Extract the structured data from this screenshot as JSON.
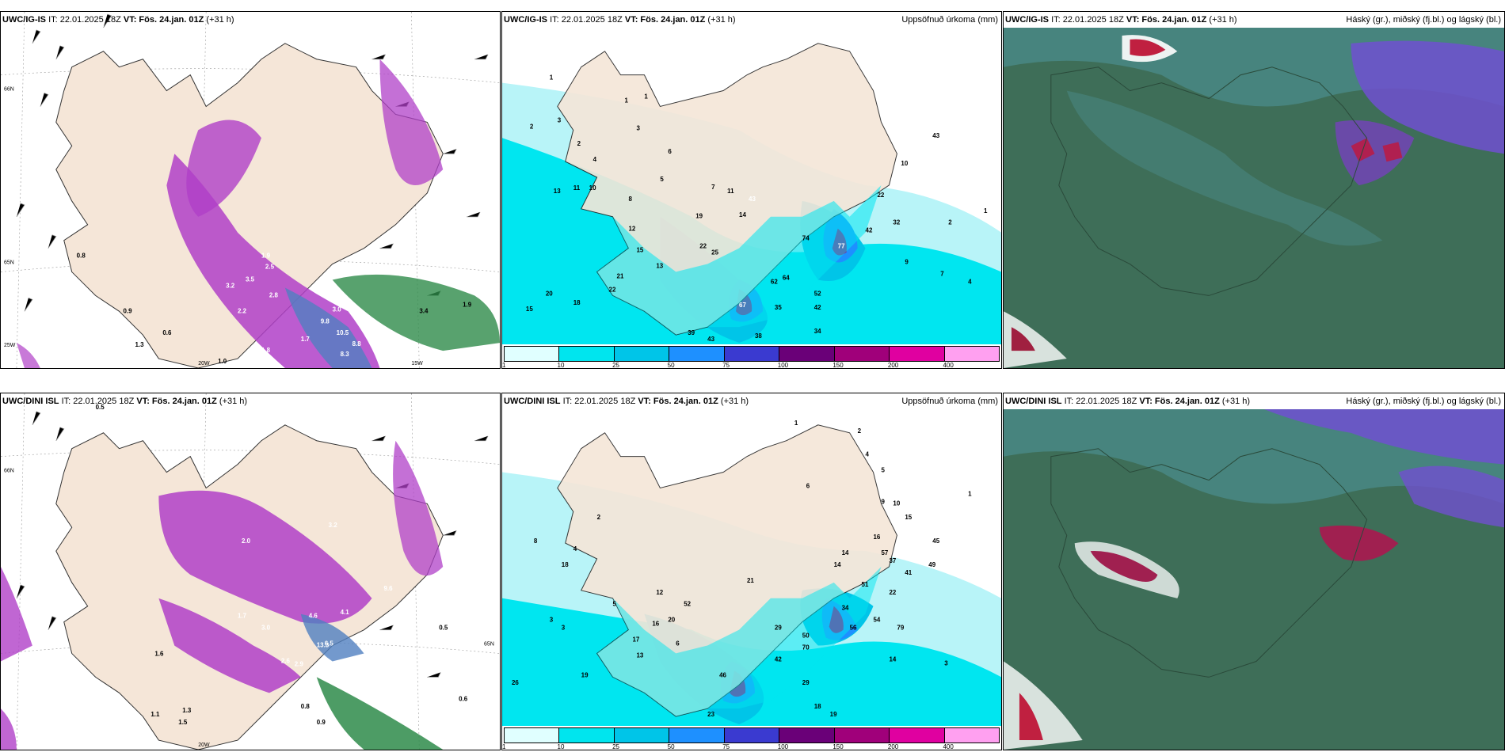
{
  "common": {
    "init": "IT: 22.01.2025 18Z",
    "valid_prefix": "VT:",
    "valid": "Fös. 24.jan. 01Z",
    "lead": "(+31 h)"
  },
  "rows": [
    {
      "model": "UWC/IG-IS",
      "panels": [
        {
          "kind": "wind-precip",
          "right_title": ""
        },
        {
          "kind": "accum-precip",
          "right_title": "Uppsöfnuð úrkoma (mm)"
        },
        {
          "kind": "cloud",
          "right_title": "Háský (gr.), miðský (fj.bl.) og lágský (bl.)"
        }
      ]
    },
    {
      "model": "UWC/DINI ISL",
      "panels": [
        {
          "kind": "wind-precip",
          "right_title": ""
        },
        {
          "kind": "accum-precip",
          "right_title": "Uppsöfnuð úrkoma (mm)"
        },
        {
          "kind": "cloud",
          "right_title": "Háský (gr.), miðský (fj.bl.) og lágský (bl.)"
        }
      ]
    }
  ],
  "grid_labels": {
    "lat_66": "66N",
    "lat_65": "65N",
    "lon_25": "25W",
    "lon_20": "20W",
    "lon_15": "15W"
  },
  "legend": {
    "ticks": [
      "1",
      "10",
      "25",
      "50",
      "75",
      "100",
      "150",
      "200",
      "400"
    ],
    "colors": [
      "#e0ffff",
      "#00e5ee",
      "#00c5e8",
      "#1e90ff",
      "#3a3ad0",
      "#6a0078",
      "#a0007a",
      "#e000a0",
      "#ffa0f0"
    ]
  },
  "colors": {
    "land": "#f5e6d8",
    "sea_precip_light": "#b8f4f8",
    "sea_precip": "#00e6f0",
    "cloud_dark": "#3e6e58",
    "cloud_mid": "#4a8a88",
    "cloud_high": "#7050d0",
    "precip_magenta": "#b040c8",
    "precip_green": "#2e8b4a"
  },
  "labels_ig_accum": [
    "1",
    "1",
    "2",
    "3",
    "2",
    "1",
    "3",
    "4",
    "6",
    "5",
    "13",
    "11",
    "10",
    "7",
    "8",
    "11",
    "43",
    "12",
    "19",
    "14",
    "22",
    "25",
    "15",
    "13",
    "21",
    "22",
    "20",
    "18",
    "15",
    "39",
    "43",
    "38",
    "34",
    "35",
    "42",
    "52",
    "62",
    "64",
    "67",
    "77",
    "74",
    "42",
    "32",
    "9",
    "7",
    "4",
    "43",
    "10",
    "22",
    "2",
    "1"
  ],
  "labels_dini_accum": [
    "1",
    "2",
    "3",
    "4",
    "5",
    "6",
    "8",
    "9",
    "10",
    "14",
    "15",
    "18",
    "19",
    "21",
    "22",
    "26",
    "29",
    "34",
    "41",
    "42",
    "45",
    "49",
    "50",
    "70",
    "79",
    "2",
    "3",
    "4",
    "5",
    "6",
    "12",
    "13",
    "16",
    "17",
    "20",
    "23",
    "46",
    "51",
    "52",
    "54",
    "57",
    "1",
    "3",
    "14",
    "14",
    "16",
    "29",
    "37",
    "56",
    "18",
    "19"
  ],
  "labels_ig_wind": [
    "0.8",
    "1.9",
    "3.4",
    "3.0",
    "9.8",
    "10.5",
    "8.8",
    "8.3",
    "1.7",
    "1.8",
    "2.2",
    "2.8",
    "3.2",
    "3.5",
    "1.9",
    "2.5",
    "0.6",
    "1.0",
    "0.9",
    "1.3"
  ],
  "labels_dini_wind": [
    "0.5",
    "0.6",
    "0.8",
    "0.9",
    "1.1",
    "1.3",
    "1.5",
    "1.6",
    "1.7",
    "2.0",
    "2.6",
    "2.9",
    "3.0",
    "3.2",
    "3.4",
    "4.1",
    "4.6",
    "6.5",
    "9.6",
    "13.3"
  ]
}
